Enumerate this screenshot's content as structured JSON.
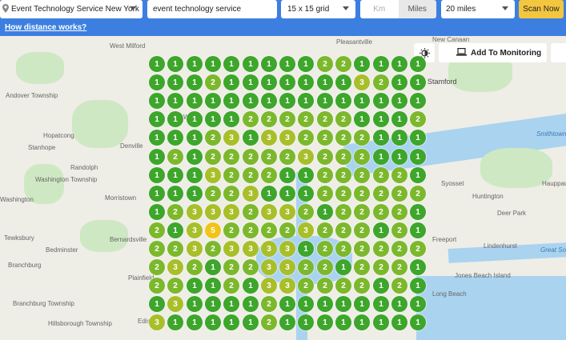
{
  "controls": {
    "location": "Event Technology Service New York",
    "keyword": "event technology service",
    "grid_size": "15 x 15 grid",
    "unit_km": "Km",
    "unit_miles": "Miles",
    "active_unit": "Miles",
    "radius": "20 miles",
    "scan_label": "Scan Now",
    "how_link": "How distance works?"
  },
  "map_actions": {
    "monitor_label": "Add To Monitoring"
  },
  "colors": {
    "rank1": "#3da62b",
    "rank2": "#7cb82c",
    "rank3": "#a8bf2a",
    "rank5": "#f2c319",
    "header": "#3d7fe0",
    "scan_button": "#f3c63f"
  },
  "map_labels": [
    "West Milford",
    "Pleasantville",
    "New Canaan",
    "Stamford",
    "Andover Township",
    "Wayne",
    "Hopatcong",
    "Stanhope",
    "Denville",
    "Randolph",
    "Washington Township",
    "Washington",
    "Morristown",
    "Tewksbury",
    "Bedminster",
    "Bernardsville",
    "Branchburg",
    "Branchburg Township",
    "Hillsborough Township",
    "Plainfield",
    "Edison",
    "Syosset",
    "Hauppauge",
    "Deer Park",
    "Huntington",
    "Lindenhurst",
    "Jones Beach Island",
    "Great South Bay",
    "Smithtown Bay",
    "Freeport",
    "Long Beach"
  ],
  "grid": [
    [
      1,
      1,
      1,
      1,
      1,
      1,
      1,
      1,
      1,
      2,
      2,
      1,
      1,
      1,
      1
    ],
    [
      1,
      1,
      1,
      2,
      1,
      1,
      1,
      1,
      1,
      1,
      1,
      3,
      2,
      1,
      1
    ],
    [
      1,
      1,
      1,
      1,
      1,
      1,
      1,
      1,
      1,
      1,
      1,
      1,
      1,
      1,
      1
    ],
    [
      1,
      1,
      1,
      1,
      1,
      2,
      2,
      2,
      2,
      2,
      2,
      1,
      1,
      1,
      2
    ],
    [
      1,
      1,
      1,
      2,
      3,
      1,
      3,
      3,
      2,
      2,
      2,
      2,
      1,
      1,
      1
    ],
    [
      1,
      2,
      1,
      2,
      2,
      2,
      2,
      2,
      3,
      2,
      2,
      2,
      1,
      1,
      1
    ],
    [
      1,
      1,
      1,
      3,
      2,
      2,
      2,
      1,
      1,
      2,
      2,
      2,
      2,
      2,
      1
    ],
    [
      1,
      1,
      1,
      2,
      2,
      3,
      1,
      1,
      1,
      2,
      2,
      2,
      2,
      2,
      2
    ],
    [
      1,
      2,
      3,
      3,
      3,
      2,
      3,
      3,
      2,
      1,
      2,
      2,
      2,
      2,
      1
    ],
    [
      2,
      1,
      3,
      5,
      2,
      2,
      2,
      2,
      3,
      2,
      2,
      2,
      1,
      2,
      1
    ],
    [
      2,
      2,
      3,
      2,
      3,
      3,
      3,
      3,
      1,
      2,
      2,
      2,
      2,
      2,
      2
    ],
    [
      2,
      3,
      2,
      1,
      2,
      2,
      3,
      3,
      2,
      2,
      1,
      2,
      2,
      2,
      1
    ],
    [
      2,
      2,
      1,
      1,
      2,
      1,
      3,
      3,
      2,
      2,
      2,
      2,
      1,
      2,
      1
    ],
    [
      1,
      3,
      1,
      1,
      1,
      1,
      2,
      1,
      1,
      1,
      1,
      1,
      1,
      1,
      1
    ],
    [
      3,
      1,
      1,
      1,
      1,
      1,
      2,
      1,
      1,
      1,
      1,
      1,
      1,
      1,
      1
    ]
  ]
}
